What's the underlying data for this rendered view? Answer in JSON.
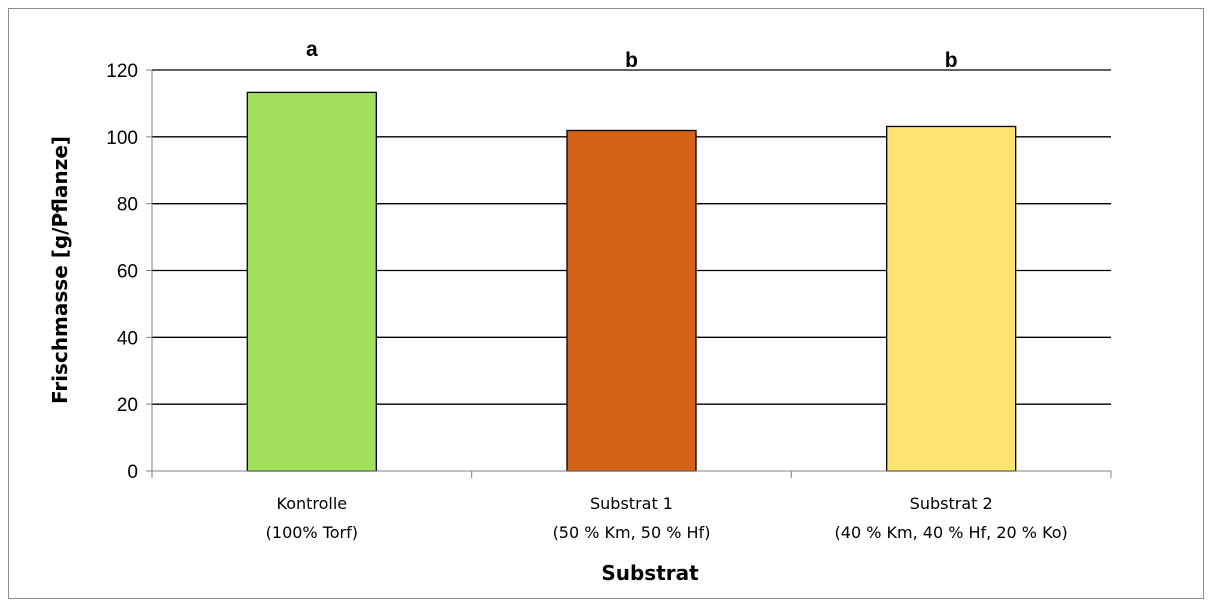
{
  "chart_data": {
    "type": "bar",
    "categories": [
      {
        "line1": "Kontrolle",
        "line2": "(100% Torf)"
      },
      {
        "line1": "Substrat 1",
        "line2": "(50 % Km, 50 % Hf)"
      },
      {
        "line1": "Substrat 2",
        "line2": "(40 % Km, 40 % Hf, 20 % Ko)"
      }
    ],
    "values": [
      113.3,
      101.9,
      103.1
    ],
    "significance": [
      "a",
      "b",
      "b"
    ],
    "colors": [
      "#a0e05a",
      "#d46318",
      "#ffe370"
    ],
    "xlabel": "Substrat",
    "ylabel": "Frischmasse [g/Pflanze]",
    "ylim": [
      0,
      120
    ],
    "yticks": [
      "0",
      "20",
      "40",
      "60",
      "80",
      "100",
      "120"
    ],
    "grid": true
  }
}
